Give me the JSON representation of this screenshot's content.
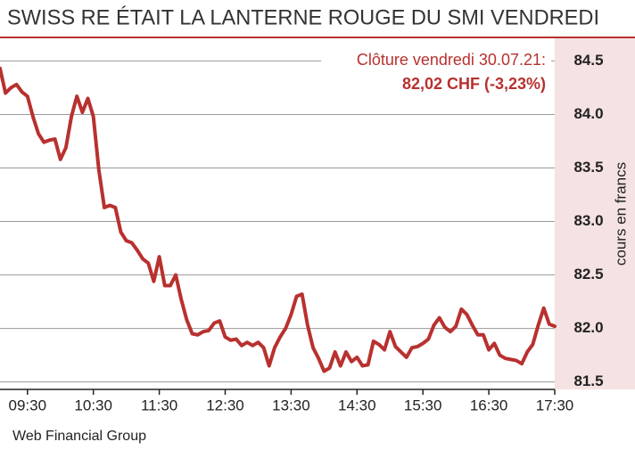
{
  "chart_data": {
    "type": "line",
    "title": "SWISS RE ÉTAIT LA LANTERNE ROUGE DU SMI VENDREDI",
    "annotations": [
      "Clôture vendredi 30.07.21:",
      "82,02 CHF (-3,23%)"
    ],
    "y_label": "cours en francs",
    "source": "Web Financial Group",
    "xlim": [
      "09:05",
      "17:30"
    ],
    "xticks": [
      "09:30",
      "10:30",
      "11:30",
      "12:30",
      "13:30",
      "14:30",
      "15:30",
      "16:30",
      "17:30"
    ],
    "ylim": [
      81.43,
      84.72
    ],
    "yticks": [
      81.5,
      {
        "value": 82,
        "label": "82.0"
      },
      82.5,
      {
        "value": 83,
        "label": "83.0"
      },
      83.5,
      {
        "value": 84,
        "label": "84.0"
      },
      84.5
    ],
    "grid": true,
    "x": [
      "09:05",
      "09:10",
      "09:15",
      "09:20",
      "09:25",
      "09:30",
      "09:35",
      "09:40",
      "09:45",
      "09:50",
      "09:55",
      "10:00",
      "10:05",
      "10:10",
      "10:15",
      "10:20",
      "10:25",
      "10:30",
      "10:35",
      "10:40",
      "10:45",
      "10:50",
      "10:55",
      "11:00",
      "11:05",
      "11:10",
      "11:15",
      "11:20",
      "11:25",
      "11:30",
      "11:35",
      "11:40",
      "11:45",
      "11:50",
      "11:55",
      "12:00",
      "12:05",
      "12:10",
      "12:15",
      "12:20",
      "12:25",
      "12:30",
      "12:35",
      "12:40",
      "12:45",
      "12:50",
      "12:55",
      "13:00",
      "13:05",
      "13:10",
      "13:15",
      "13:20",
      "13:25",
      "13:30",
      "13:35",
      "13:40",
      "13:45",
      "13:50",
      "13:55",
      "14:00",
      "14:05",
      "14:10",
      "14:15",
      "14:20",
      "14:25",
      "14:30",
      "14:35",
      "14:40",
      "14:45",
      "14:50",
      "14:55",
      "15:00",
      "15:05",
      "15:10",
      "15:15",
      "15:20",
      "15:25",
      "15:30",
      "15:35",
      "15:40",
      "15:45",
      "15:50",
      "15:55",
      "16:00",
      "16:05",
      "16:10",
      "16:15",
      "16:20",
      "16:25",
      "16:30",
      "16:35",
      "16:40",
      "16:45",
      "16:50",
      "16:55",
      "17:00",
      "17:05",
      "17:10",
      "17:15",
      "17:20",
      "17:25",
      "17:30"
    ],
    "series": [
      {
        "name": "Swiss Re",
        "color": "#b8312f",
        "values": [
          84.43,
          84.2,
          84.25,
          84.28,
          84.21,
          84.17,
          83.98,
          83.82,
          83.74,
          83.76,
          83.77,
          83.58,
          83.69,
          83.98,
          84.17,
          84.02,
          84.15,
          83.98,
          83.48,
          83.13,
          83.15,
          83.13,
          82.9,
          82.82,
          82.8,
          82.73,
          82.65,
          82.61,
          82.44,
          82.67,
          82.4,
          82.4,
          82.5,
          82.27,
          82.08,
          81.95,
          81.94,
          81.97,
          81.98,
          82.05,
          82.07,
          81.92,
          81.89,
          81.9,
          81.84,
          81.87,
          81.84,
          81.87,
          81.82,
          81.65,
          81.82,
          81.92,
          82.0,
          82.13,
          82.3,
          82.32,
          82.03,
          81.82,
          81.72,
          81.6,
          81.63,
          81.78,
          81.65,
          81.78,
          81.69,
          81.73,
          81.65,
          81.66,
          81.88,
          81.85,
          81.8,
          81.97,
          81.83,
          81.78,
          81.73,
          81.82,
          81.83,
          81.86,
          81.9,
          82.03,
          82.1,
          82.01,
          81.97,
          82.02,
          82.18,
          82.13,
          82.03,
          81.94,
          81.94,
          81.8,
          81.86,
          81.75,
          81.72,
          81.71,
          81.7,
          81.67,
          81.78,
          81.85,
          82.03,
          82.19,
          82.04,
          82.02
        ]
      }
    ]
  }
}
